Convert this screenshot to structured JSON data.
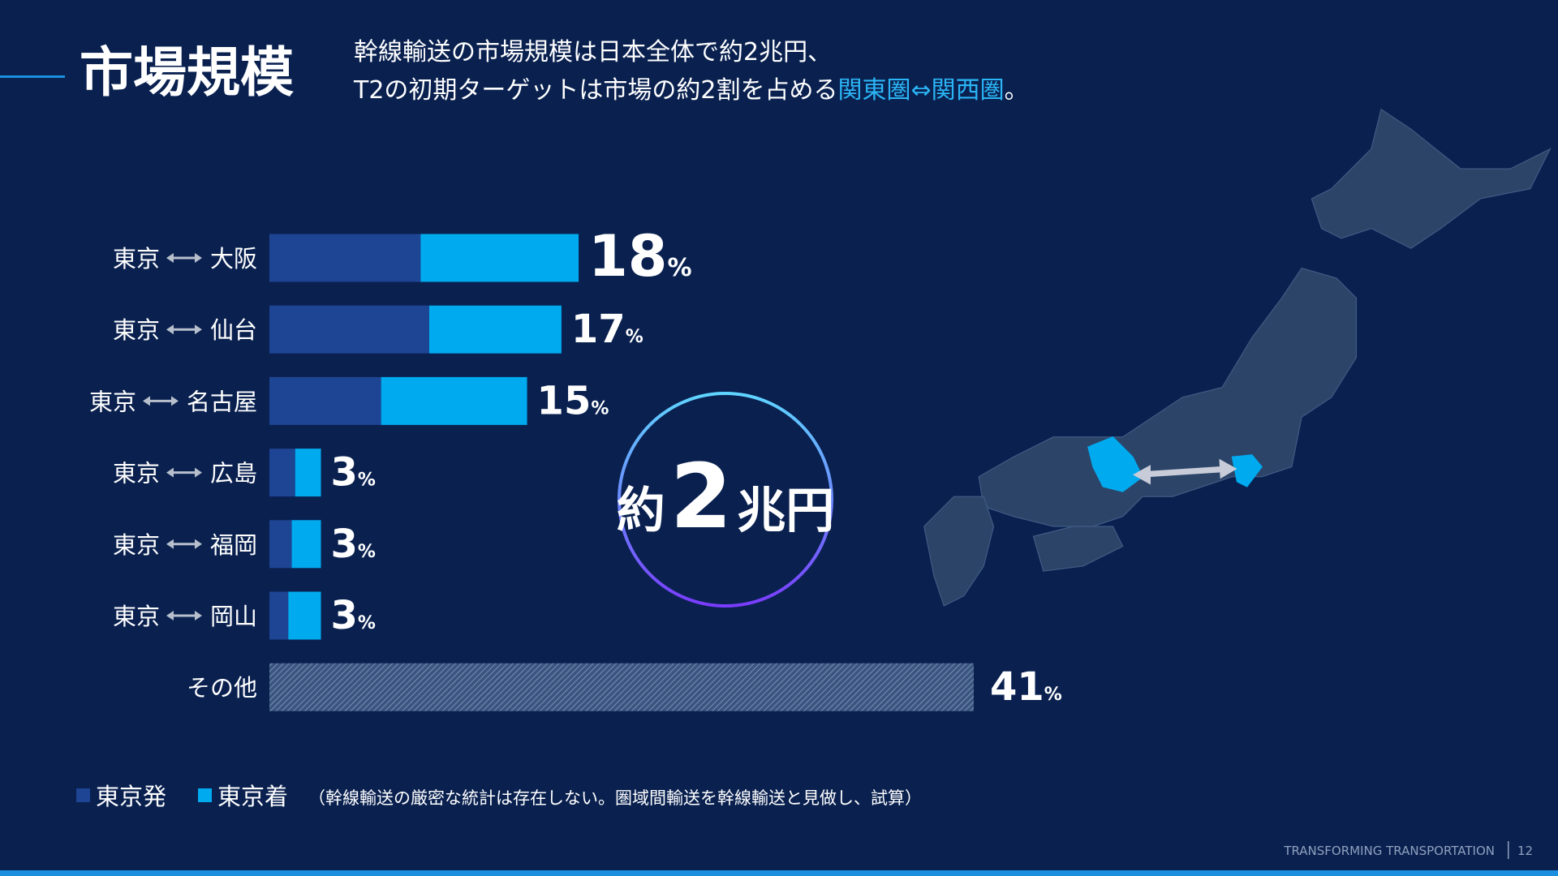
{
  "header": {
    "title": "市場規模",
    "subtitle_line1": "幹線輸送の市場規模は日本全体で約2兆円、",
    "subtitle_line2": "T2の初期ターゲットは市場の約2割を占める",
    "subtitle_highlight": "関東圏⇔関西圏",
    "subtitle_end": "。"
  },
  "chart_data": {
    "type": "bar",
    "orientation": "horizontal",
    "stacked": true,
    "categories": [
      {
        "from": "東京",
        "to": "大阪"
      },
      {
        "from": "東京",
        "to": "仙台"
      },
      {
        "from": "東京",
        "to": "名古屋"
      },
      {
        "from": "東京",
        "to": "広島"
      },
      {
        "from": "東京",
        "to": "福岡"
      },
      {
        "from": "東京",
        "to": "岡山"
      }
    ],
    "series": [
      {
        "name": "東京発",
        "color": "#1e4494",
        "values": [
          8.8,
          9.3,
          6.5,
          1.5,
          1.3,
          1.1
        ]
      },
      {
        "name": "東京着",
        "color": "#00aaef",
        "values": [
          9.2,
          7.7,
          8.5,
          1.5,
          1.7,
          1.9
        ]
      }
    ],
    "totals": [
      18,
      17,
      15,
      3,
      3,
      3
    ],
    "unit": "%",
    "other": {
      "label": "その他",
      "value": 41
    },
    "xlim": [
      0,
      41
    ],
    "note": "（幹線輸送の厳密な統計は存在しない。圏域間輸送を幹線輸送と見做し、試算）"
  },
  "badge": {
    "prefix": "約",
    "number": "2",
    "suffix": "兆円"
  },
  "footer": {
    "brand": "TRANSFORMING TRANSPORTATION",
    "page": "12"
  }
}
